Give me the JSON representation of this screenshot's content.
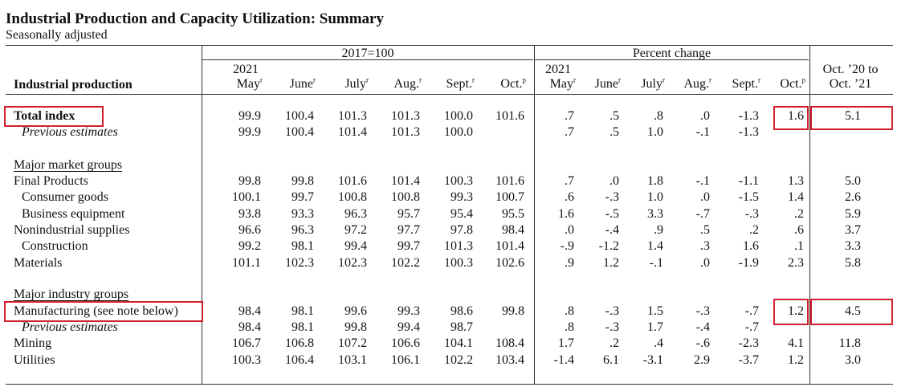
{
  "title": "Industrial Production and Capacity Utilization: Summary",
  "subtitle": "Seasonally adjusted",
  "header": {
    "index_group": "2017=100",
    "pct_group": "Percent change",
    "year_left": "2021",
    "year_right": "2021",
    "row_label": "Industrial production",
    "yoy_line1": "Oct. ’20 to",
    "yoy_line2": "Oct. ’21",
    "idx_months": [
      {
        "m": "May",
        "s": "r"
      },
      {
        "m": "June",
        "s": "r"
      },
      {
        "m": "July",
        "s": "r"
      },
      {
        "m": "Aug.",
        "s": "r"
      },
      {
        "m": "Sept.",
        "s": "r"
      },
      {
        "m": "Oct.",
        "s": "p"
      }
    ],
    "pct_months": [
      {
        "m": "May",
        "s": "r"
      },
      {
        "m": "June",
        "s": "r"
      },
      {
        "m": "July",
        "s": "r"
      },
      {
        "m": "Aug.",
        "s": "r"
      },
      {
        "m": "Sept.",
        "s": "r"
      },
      {
        "m": "Oct.",
        "s": "p"
      }
    ]
  },
  "rows": [
    {
      "label": "Total index",
      "style": "bold",
      "vals": [
        "99.9",
        "100.4",
        "101.3",
        "101.3",
        "100.0",
        "101.6",
        ".7",
        ".5",
        ".8",
        ".0",
        "-1.3",
        "1.6",
        "5.1"
      ]
    },
    {
      "label": "Previous estimates",
      "style": "italic",
      "vals": [
        "99.9",
        "100.4",
        "101.4",
        "101.3",
        "100.0",
        "",
        ".7",
        ".5",
        "1.0",
        "-.1",
        "-1.3",
        "",
        ""
      ]
    },
    {
      "label": "Major market groups",
      "style": "section",
      "vals": []
    },
    {
      "label": "Final Products",
      "style": "l0",
      "vals": [
        "99.8",
        "99.8",
        "101.6",
        "101.4",
        "100.3",
        "101.6",
        ".7",
        ".0",
        "1.8",
        "-.1",
        "-1.1",
        "1.3",
        "5.0"
      ]
    },
    {
      "label": "Consumer goods",
      "style": "l1",
      "vals": [
        "100.1",
        "99.7",
        "100.8",
        "100.8",
        "99.3",
        "100.7",
        ".6",
        "-.3",
        "1.0",
        ".0",
        "-1.5",
        "1.4",
        "2.6"
      ]
    },
    {
      "label": "Business equipment",
      "style": "l1",
      "vals": [
        "93.8",
        "93.3",
        "96.3",
        "95.7",
        "95.4",
        "95.5",
        "1.6",
        "-.5",
        "3.3",
        "-.7",
        "-.3",
        ".2",
        "5.9"
      ]
    },
    {
      "label": "Nonindustrial supplies",
      "style": "l0",
      "vals": [
        "96.6",
        "96.3",
        "97.2",
        "97.7",
        "97.8",
        "98.4",
        ".0",
        "-.4",
        ".9",
        ".5",
        ".2",
        ".6",
        "3.7"
      ]
    },
    {
      "label": "Construction",
      "style": "l1",
      "vals": [
        "99.2",
        "98.1",
        "99.4",
        "99.7",
        "101.3",
        "101.4",
        "-.9",
        "-1.2",
        "1.4",
        ".3",
        "1.6",
        ".1",
        "3.3"
      ]
    },
    {
      "label": "Materials",
      "style": "l0",
      "vals": [
        "101.1",
        "102.3",
        "102.3",
        "102.2",
        "100.3",
        "102.6",
        ".9",
        "1.2",
        "-.1",
        ".0",
        "-1.9",
        "2.3",
        "5.8"
      ]
    },
    {
      "label": "Major industry groups",
      "style": "section",
      "vals": []
    },
    {
      "label": "Manufacturing (see note below)",
      "style": "l0",
      "vals": [
        "98.4",
        "98.1",
        "99.6",
        "99.3",
        "98.6",
        "99.8",
        ".8",
        "-.3",
        "1.5",
        "-.3",
        "-.7",
        "1.2",
        "4.5"
      ]
    },
    {
      "label": "Previous estimates",
      "style": "italic",
      "vals": [
        "98.4",
        "98.1",
        "99.8",
        "99.4",
        "98.7",
        "",
        ".8",
        "-.3",
        "1.7",
        "-.4",
        "-.7",
        "",
        ""
      ]
    },
    {
      "label": "Mining",
      "style": "l0",
      "vals": [
        "106.7",
        "106.8",
        "107.2",
        "106.6",
        "104.1",
        "108.4",
        "1.7",
        ".2",
        ".4",
        "-.6",
        "-2.3",
        "4.1",
        "11.8"
      ]
    },
    {
      "label": "Utilities",
      "style": "l0",
      "vals": [
        "100.3",
        "106.4",
        "103.1",
        "106.1",
        "102.2",
        "103.4",
        "-1.4",
        "6.1",
        "-3.1",
        "2.9",
        "-3.7",
        "1.2",
        "3.0"
      ]
    }
  ],
  "highlight_color": "#d0202e"
}
